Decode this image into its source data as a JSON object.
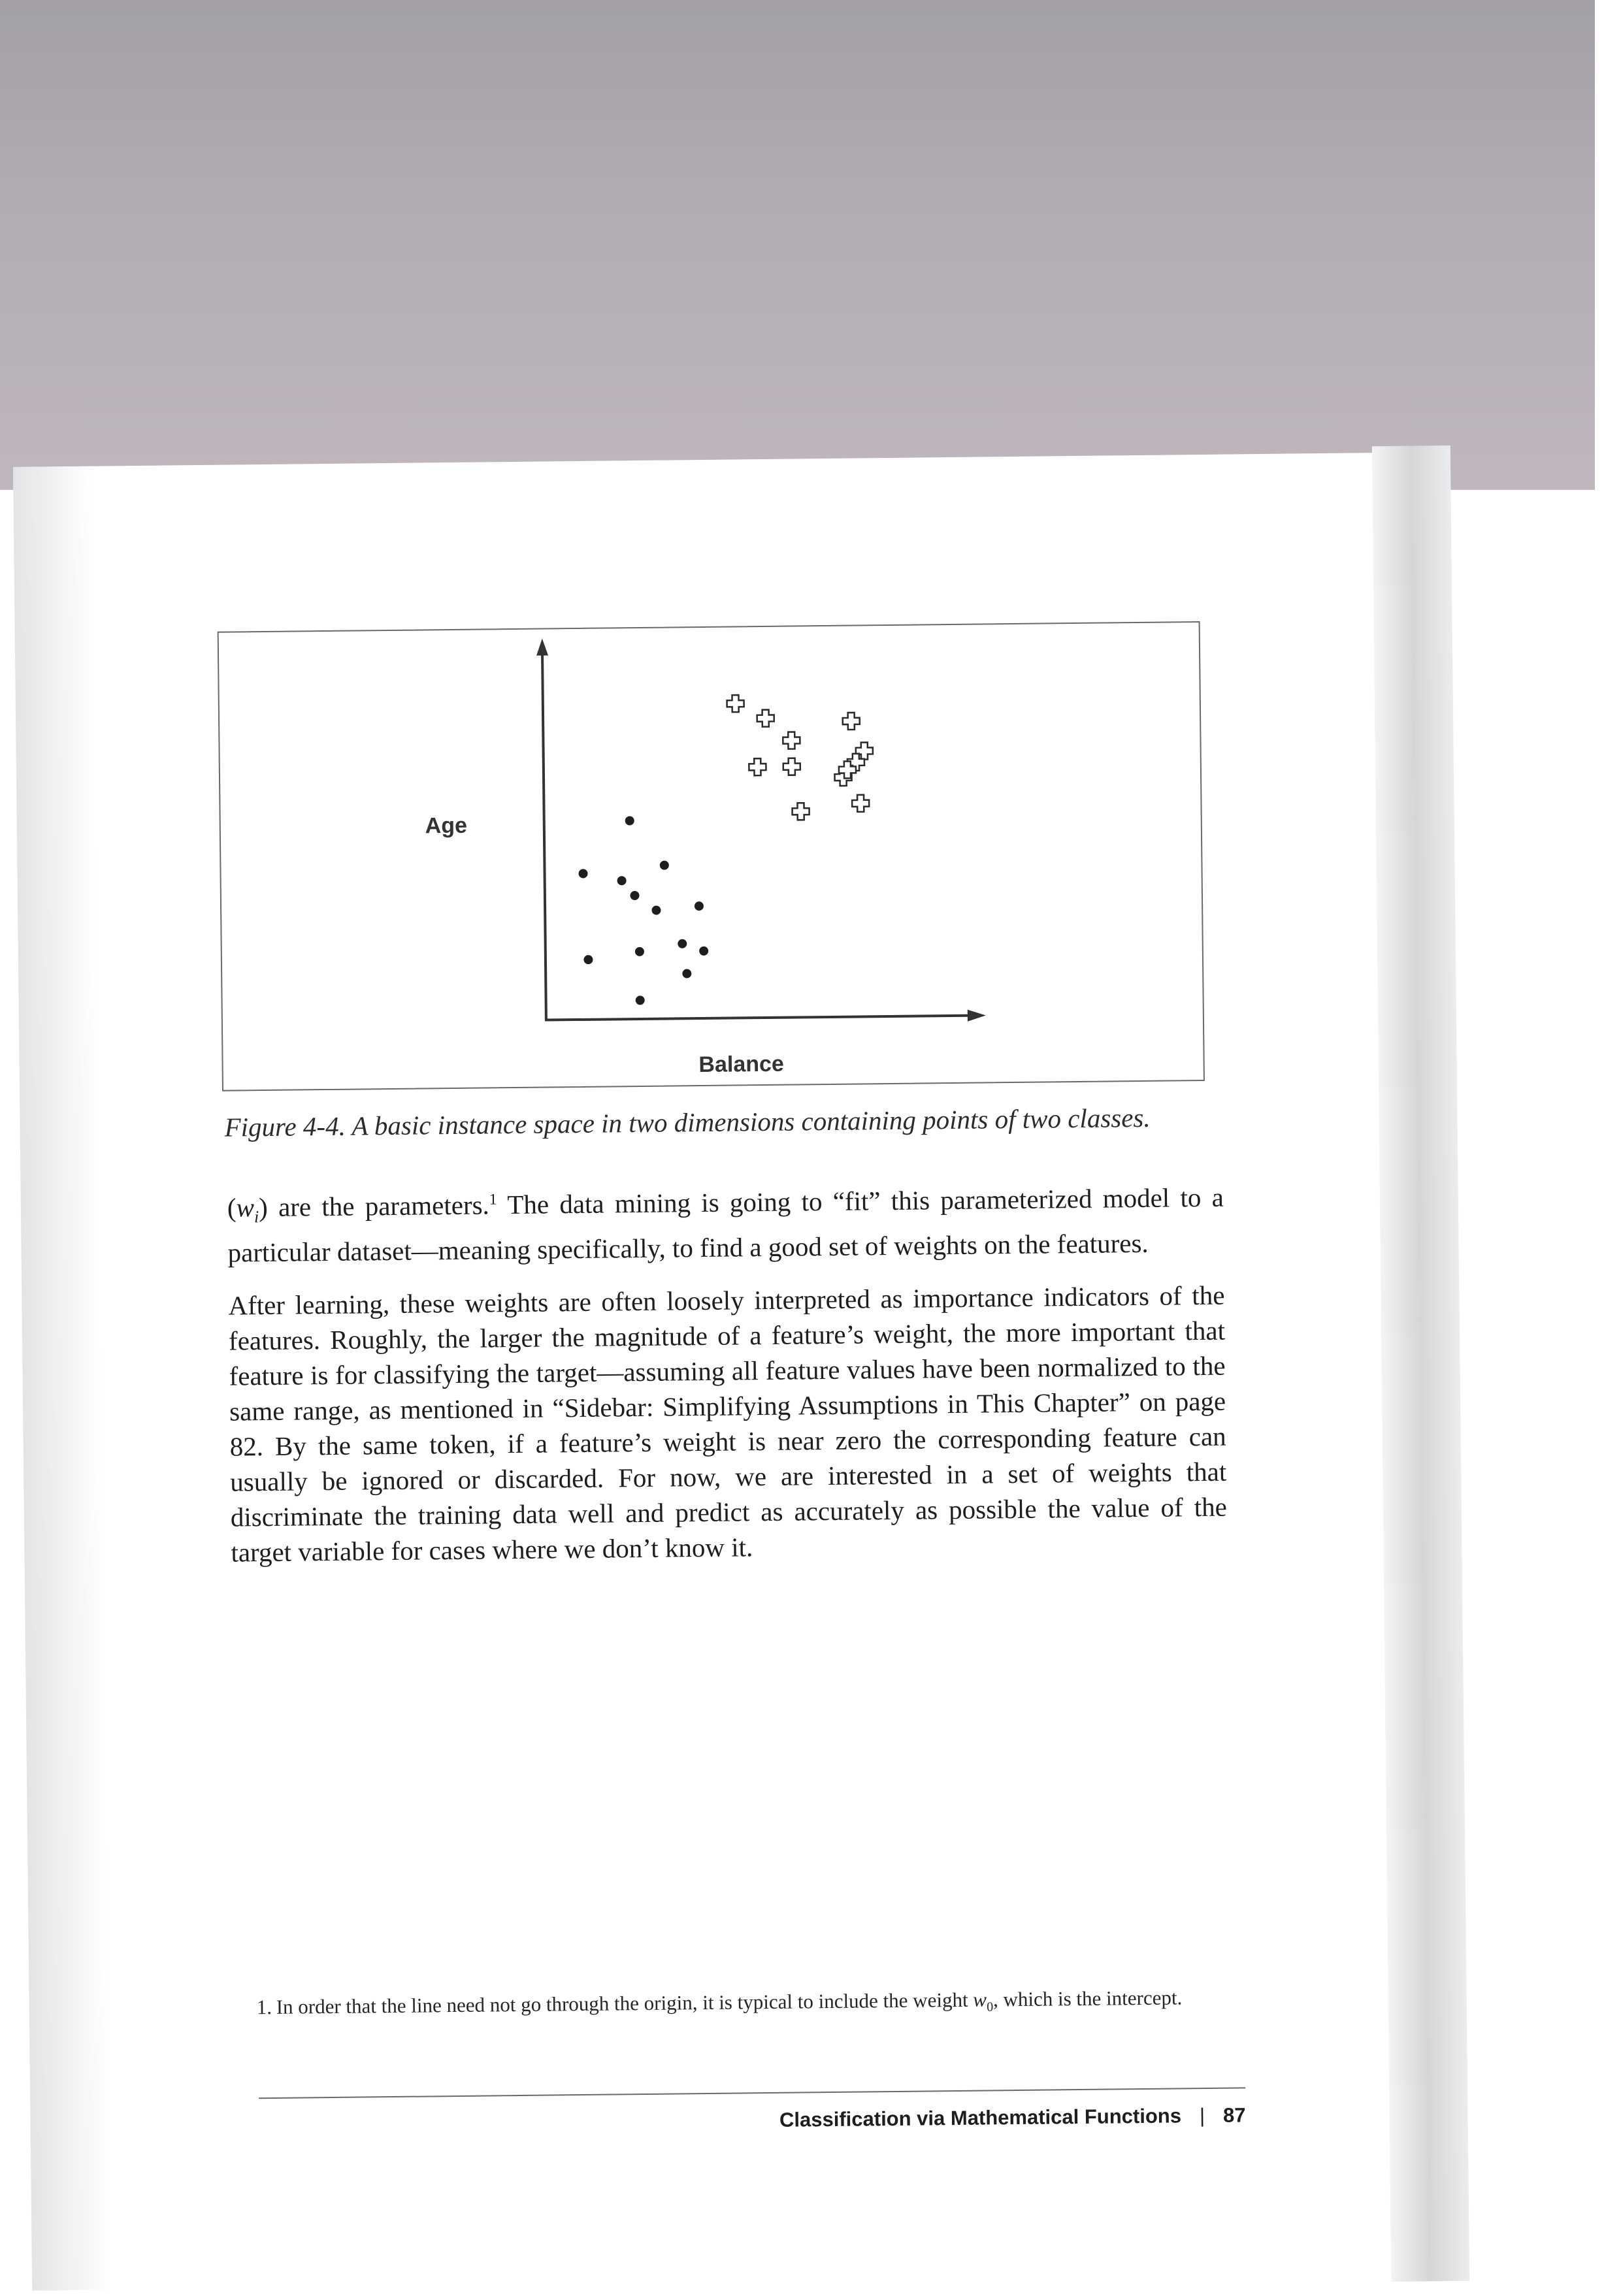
{
  "figure": {
    "caption": "Figure 4-4. A basic instance space in two dimensions containing points of two classes.",
    "chart_data": {
      "type": "scatter",
      "xlabel": "Balance",
      "ylabel": "Age",
      "grid": false,
      "xlim": [
        0,
        100
      ],
      "ylim": [
        0,
        100
      ],
      "series": [
        {
          "marker": "dot",
          "points": [
            [
              20,
              53
            ],
            [
              9,
              39
            ],
            [
              18,
              37
            ],
            [
              28,
              41
            ],
            [
              21,
              33
            ],
            [
              26,
              29
            ],
            [
              36,
              30
            ],
            [
              32,
              20
            ],
            [
              22,
              18
            ],
            [
              37,
              18
            ],
            [
              10,
              16
            ],
            [
              33,
              12
            ],
            [
              22,
              5
            ]
          ]
        },
        {
          "marker": "plus",
          "points": [
            [
              45,
              84
            ],
            [
              52,
              80
            ],
            [
              72,
              79
            ],
            [
              58,
              74
            ],
            [
              75,
              71
            ],
            [
              50,
              67
            ],
            [
              58,
              67
            ],
            [
              73,
              68
            ],
            [
              70,
              64
            ],
            [
              71,
              66
            ],
            [
              60,
              55
            ],
            [
              74,
              57
            ]
          ]
        }
      ]
    }
  },
  "body": {
    "para1_pre": "(",
    "para1_var": "w",
    "para1_sub": "i",
    "para1_post": ") are the parameters.",
    "para1_ref": "1",
    "para1_rest": " The data mining is going to “fit” this parameterized model to a particular dataset—meaning specifically, to find a good set of weights on the features.",
    "para2": "After learning, these weights are often loosely interpreted as importance indicators of the features. Roughly, the larger the magnitude of a feature’s weight, the more important that feature is for classifying the target—assuming all feature values have been normalized to the same range, as mentioned in “Sidebar: Simplifying Assumptions in This Chapter” on page 82. By the same token, if a feature’s weight is near zero the corresponding feature can usually be ignored or discarded. For now, we are interested in a set of weights that discriminate the training data well and predict as accurately as possible the value of the target variable for cases where we don’t know it."
  },
  "footnote": {
    "number": "1.",
    "text_pre": "In order that the line need not go through the origin, it is typical to include the weight ",
    "weight": "w",
    "weight_sub": "0",
    "text_post": ", which is the intercept."
  },
  "footer": {
    "chapter": "Classification via Mathematical Functions",
    "separator": "|",
    "page_number": "87"
  }
}
